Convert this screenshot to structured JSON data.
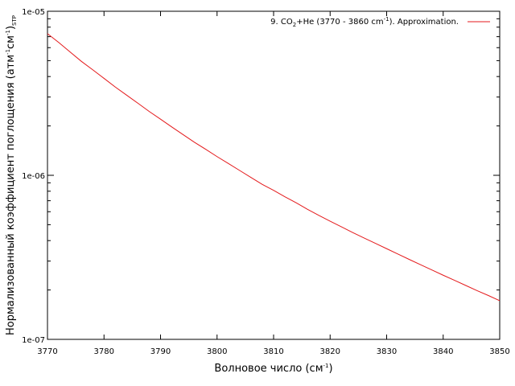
{
  "chart_data": {
    "type": "line",
    "xlabel": "Волновое число (см",
    "xlabel_sup": "-1",
    "xlabel_end": ")",
    "ylabel": "Нормализованный коэффициент поглощения (атм",
    "ylabel_sup1": "-1",
    "ylabel_mid": "см",
    "ylabel_sup2": "-1",
    "ylabel_end": ")",
    "ylabel_sub": "STP",
    "xlim": [
      3770,
      3850
    ],
    "ylim": [
      1e-07,
      1e-05
    ],
    "yscale": "log",
    "grid": false,
    "legend_position": "top-right",
    "x_ticks": [
      3770,
      3780,
      3790,
      3800,
      3810,
      3820,
      3830,
      3840,
      3850
    ],
    "x_tick_labels": [
      "3770",
      "3780",
      "3790",
      "3800",
      "3810",
      "3820",
      "3830",
      "3840",
      "3850"
    ],
    "y_ticks": [
      1e-07,
      1e-06,
      1e-05
    ],
    "y_tick_labels": [
      "1e-07",
      "1e-06",
      "1e-05"
    ],
    "series": [
      {
        "name": "9. CO2+He (3770 - 3860 cm-1). Approximation.",
        "legend_parts": {
          "prefix": "9. CO",
          "sub": "2",
          "mid": "+He (3770 - 3860 cm",
          "sup": "-1",
          "suffix": "). Approximation."
        },
        "color": "#e41a1c",
        "x": [
          3770,
          3772,
          3774,
          3776,
          3778,
          3780,
          3782,
          3784,
          3786,
          3788,
          3790,
          3792,
          3794,
          3796,
          3798,
          3800,
          3802,
          3804,
          3806,
          3808,
          3810,
          3812,
          3814,
          3816,
          3818,
          3820,
          3822,
          3824,
          3826,
          3828,
          3830,
          3832,
          3834,
          3836,
          3838,
          3840,
          3842,
          3844,
          3846,
          3848,
          3850
        ],
        "y": [
          7.3e-06,
          6.45e-06,
          5.65e-06,
          4.95e-06,
          4.4e-06,
          3.9e-06,
          3.45e-06,
          3.08e-06,
          2.75e-06,
          2.45e-06,
          2.2e-06,
          1.97e-06,
          1.77e-06,
          1.59e-06,
          1.44e-06,
          1.3e-06,
          1.18e-06,
          1.07e-06,
          9.7e-07,
          8.8e-07,
          8.1e-07,
          7.4e-07,
          6.8e-07,
          6.2e-07,
          5.7e-07,
          5.25e-07,
          4.85e-07,
          4.48e-07,
          4.15e-07,
          3.85e-07,
          3.57e-07,
          3.31e-07,
          3.07e-07,
          2.85e-07,
          2.65e-07,
          2.46e-07,
          2.29e-07,
          2.13e-07,
          1.98e-07,
          1.85e-07,
          1.72e-07
        ]
      }
    ]
  }
}
